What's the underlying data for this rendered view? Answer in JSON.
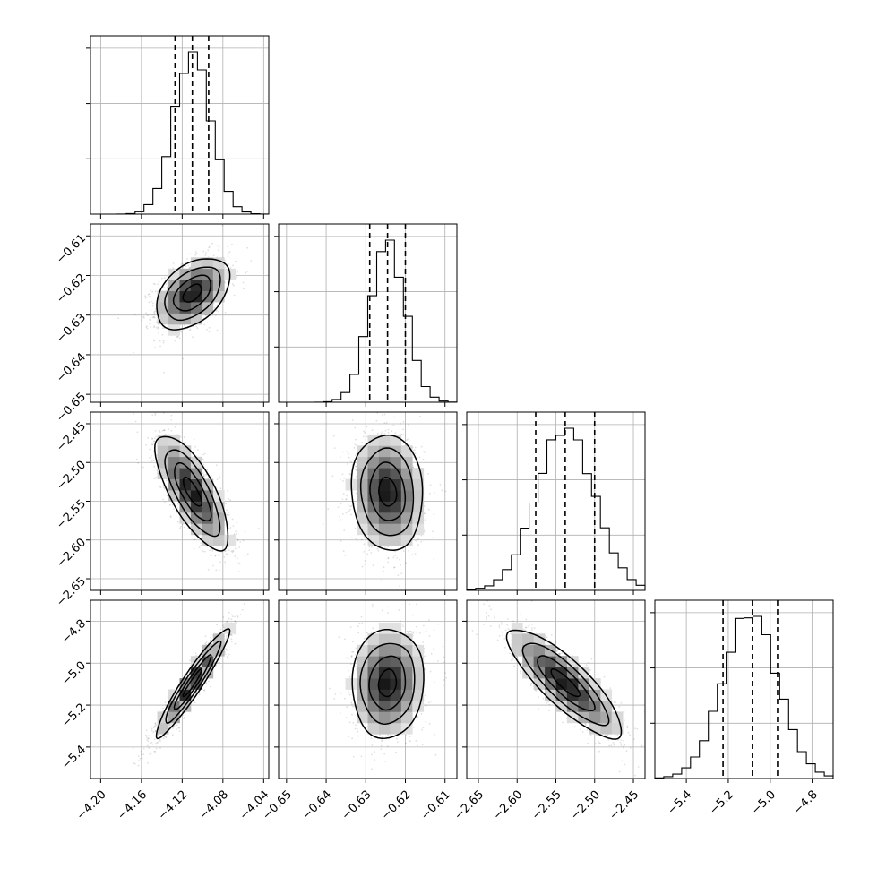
{
  "chart_data": {
    "type": "corner",
    "grid": true,
    "quantile_lines": "dashed",
    "parameters": [
      {
        "range": [
          -4.21,
          -4.035
        ],
        "ticks": [
          -4.2,
          -4.16,
          -4.12,
          -4.08,
          -4.04
        ],
        "tick_labels": [
          "−4.20",
          "−4.16",
          "−4.12",
          "−4.08",
          "−4.04"
        ],
        "median": -4.11,
        "mean": -4.11,
        "sd": 0.018,
        "quantiles": [
          -4.127,
          -4.11,
          -4.094
        ]
      },
      {
        "range": [
          -0.652,
          -0.607
        ],
        "ticks": [
          -0.65,
          -0.64,
          -0.63,
          -0.62,
          -0.61
        ],
        "tick_labels": [
          "−0.65",
          "−0.64",
          "−0.63",
          "−0.62",
          "−0.61"
        ],
        "median": -0.6245,
        "mean": -0.6245,
        "sd": 0.0045,
        "quantiles": [
          -0.629,
          -0.6245,
          -0.62
        ]
      },
      {
        "range": [
          -2.665,
          -2.435
        ],
        "ticks": [
          -2.65,
          -2.6,
          -2.55,
          -2.5,
          -2.45
        ],
        "tick_labels": [
          "−2.65",
          "−2.60",
          "−2.55",
          "−2.50",
          "−2.45"
        ],
        "median": -2.538,
        "mean": -2.538,
        "sd": 0.037,
        "quantiles": [
          -2.576,
          -2.538,
          -2.5
        ]
      },
      {
        "range": [
          -5.55,
          -4.7
        ],
        "ticks": [
          -5.4,
          -5.2,
          -5.0,
          -4.8
        ],
        "tick_labels": [
          "−5.4",
          "−5.2",
          "−5.0",
          "−4.8"
        ],
        "median": -5.085,
        "mean": -5.095,
        "sd": 0.13,
        "quantiles": [
          -5.225,
          -5.085,
          -4.965
        ]
      }
    ],
    "correlations": [
      {
        "pair": [
          0,
          1
        ],
        "rho": 0.45
      },
      {
        "pair": [
          0,
          2
        ],
        "rho": -0.75
      },
      {
        "pair": [
          1,
          2
        ],
        "rho": -0.1
      },
      {
        "pair": [
          0,
          3
        ],
        "rho": 0.95
      },
      {
        "pair": [
          1,
          3
        ],
        "rho": 0.08
      },
      {
        "pair": [
          2,
          3
        ],
        "rho": -0.85
      }
    ]
  }
}
